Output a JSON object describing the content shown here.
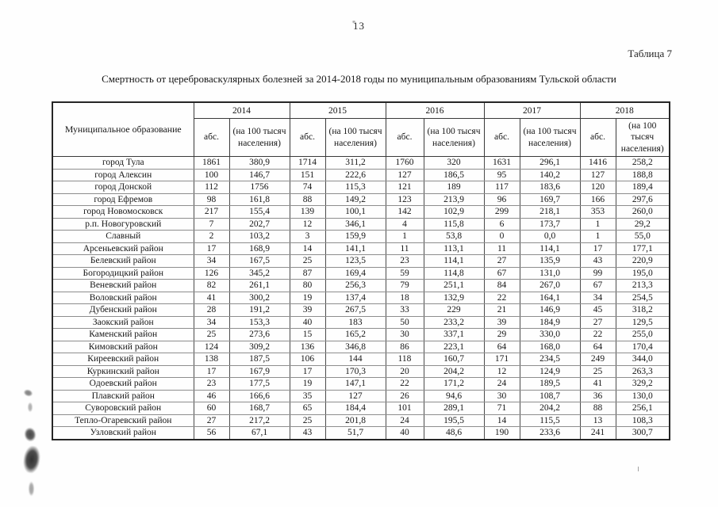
{
  "page": {
    "number": "13",
    "table_label": "Таблица 7",
    "title": "Смертность от цереброваскулярных болезней за 2014-2018 годы по муниципальным образованиям Тульской области"
  },
  "table": {
    "corner_header": "Муниципальное образование",
    "years": [
      "2014",
      "2015",
      "2016",
      "2017",
      "2018"
    ],
    "sub_headers": {
      "abs": "абс.",
      "rate": "(на 100 тысяч населения)"
    },
    "rows": [
      {
        "name": "город Тула",
        "values": [
          "1861",
          "380,9",
          "1714",
          "311,2",
          "1760",
          "320",
          "1631",
          "296,1",
          "1416",
          "258,2"
        ]
      },
      {
        "name": "город Алексин",
        "values": [
          "100",
          "146,7",
          "151",
          "222,6",
          "127",
          "186,5",
          "95",
          "140,2",
          "127",
          "188,8"
        ]
      },
      {
        "name": "город Донской",
        "values": [
          "112",
          "1756",
          "74",
          "115,3",
          "121",
          "189",
          "117",
          "183,6",
          "120",
          "189,4"
        ]
      },
      {
        "name": "город Ефремов",
        "values": [
          "98",
          "161,8",
          "88",
          "149,2",
          "123",
          "213,9",
          "96",
          "169,7",
          "166",
          "297,6"
        ]
      },
      {
        "name": "город Новомосковск",
        "values": [
          "217",
          "155,4",
          "139",
          "100,1",
          "142",
          "102,9",
          "299",
          "218,1",
          "353",
          "260,0"
        ]
      },
      {
        "name": "р.п. Новогуровский",
        "values": [
          "7",
          "202,7",
          "12",
          "346,1",
          "4",
          "115,8",
          "6",
          "173,7",
          "1",
          "29,2"
        ]
      },
      {
        "name": "Славный",
        "values": [
          "2",
          "103,2",
          "3",
          "159,9",
          "1",
          "53,8",
          "0",
          "0,0",
          "1",
          "55,0"
        ]
      },
      {
        "name": "Арсеньевский район",
        "values": [
          "17",
          "168,9",
          "14",
          "141,1",
          "11",
          "113,1",
          "11",
          "114,1",
          "17",
          "177,1"
        ]
      },
      {
        "name": "Белевский район",
        "values": [
          "34",
          "167,5",
          "25",
          "123,5",
          "23",
          "114,1",
          "27",
          "135,9",
          "43",
          "220,9"
        ]
      },
      {
        "name": "Богородицкий район",
        "values": [
          "126",
          "345,2",
          "87",
          "169,4",
          "59",
          "114,8",
          "67",
          "131,0",
          "99",
          "195,0"
        ]
      },
      {
        "name": "Веневский район",
        "values": [
          "82",
          "261,1",
          "80",
          "256,3",
          "79",
          "251,1",
          "84",
          "267,0",
          "67",
          "213,3"
        ]
      },
      {
        "name": "Воловский район",
        "values": [
          "41",
          "300,2",
          "19",
          "137,4",
          "18",
          "132,9",
          "22",
          "164,1",
          "34",
          "254,5"
        ]
      },
      {
        "name": "Дубенский район",
        "values": [
          "28",
          "191,2",
          "39",
          "267,5",
          "33",
          "229",
          "21",
          "146,9",
          "45",
          "318,2"
        ]
      },
      {
        "name": "Заокский район",
        "values": [
          "34",
          "153,3",
          "40",
          "183",
          "50",
          "233,2",
          "39",
          "184,9",
          "27",
          "129,5"
        ]
      },
      {
        "name": "Каменский район",
        "values": [
          "25",
          "273,6",
          "15",
          "165,2",
          "30",
          "337,1",
          "29",
          "330,0",
          "22",
          "255,0"
        ]
      },
      {
        "name": "Кимовский район",
        "values": [
          "124",
          "309,2",
          "136",
          "346,8",
          "86",
          "223,1",
          "64",
          "168,0",
          "64",
          "170,4"
        ]
      },
      {
        "name": "Киреевский район",
        "values": [
          "138",
          "187,5",
          "106",
          "144",
          "118",
          "160,7",
          "171",
          "234,5",
          "249",
          "344,0"
        ]
      },
      {
        "name": "Куркинский район",
        "values": [
          "17",
          "167,9",
          "17",
          "170,3",
          "20",
          "204,2",
          "12",
          "124,9",
          "25",
          "263,3"
        ]
      },
      {
        "name": "Одоевский район",
        "values": [
          "23",
          "177,5",
          "19",
          "147,1",
          "22",
          "171,2",
          "24",
          "189,5",
          "41",
          "329,2"
        ]
      },
      {
        "name": "Плавский район",
        "values": [
          "46",
          "166,6",
          "35",
          "127",
          "26",
          "94,6",
          "30",
          "108,7",
          "36",
          "130,0"
        ]
      },
      {
        "name": "Суворовский район",
        "values": [
          "60",
          "168,7",
          "65",
          "184,4",
          "101",
          "289,1",
          "71",
          "204,2",
          "88",
          "256,1"
        ]
      },
      {
        "name": "Тепло-Огаревский район",
        "values": [
          "27",
          "217,2",
          "25",
          "201,8",
          "24",
          "195,5",
          "14",
          "115,5",
          "13",
          "108,3"
        ]
      },
      {
        "name": "Узловский район",
        "values": [
          "56",
          "67,1",
          "43",
          "51,7",
          "40",
          "48,6",
          "190",
          "233,6",
          "241",
          "300,7"
        ]
      }
    ]
  }
}
